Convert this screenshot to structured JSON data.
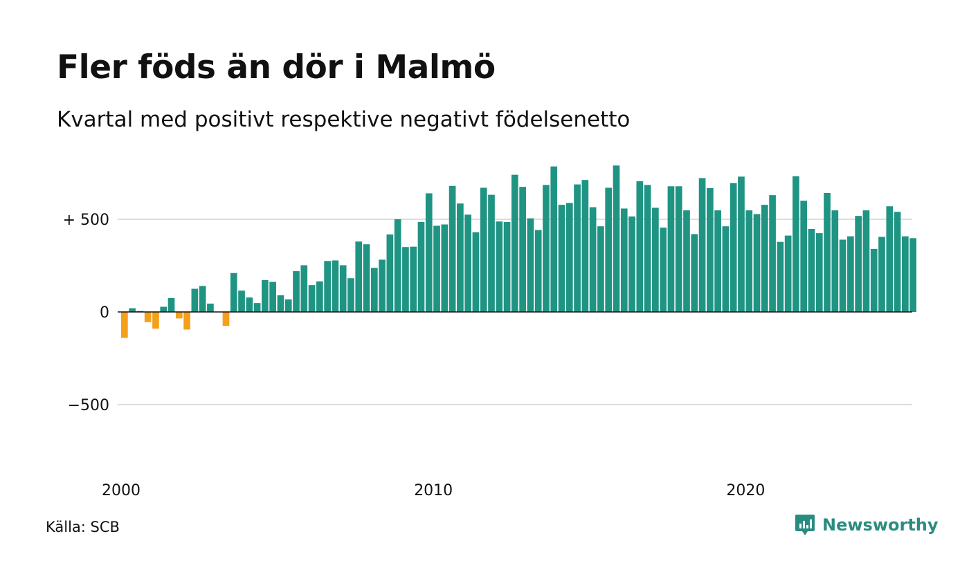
{
  "title": "Fler föds än dör i Malmö",
  "subtitle": "Kvartal med positivt respektive negativt födelsenetto",
  "source": "Källa: SCB",
  "brand": {
    "name": "Newsworthy",
    "icon": "newsworthy-logo-icon"
  },
  "colors": {
    "positive": "#1f9483",
    "negative": "#f5a01a",
    "grid": "#dddddd",
    "axis": "#111111"
  },
  "chart_data": {
    "type": "bar",
    "title": "Fler föds än dör i Malmö",
    "subtitle": "Kvartal med positivt respektive negativt födelsenetto",
    "xlabel": "",
    "ylabel": "",
    "x_start_year": 2000,
    "periods_per_year": 4,
    "ylim": [
      -1000,
      800
    ],
    "yticks": [
      {
        "value": 500,
        "label": "+ 500"
      },
      {
        "value": 0,
        "label": "0"
      },
      {
        "value": -500,
        "label": "−500"
      }
    ],
    "xticks": [
      {
        "value": 2000,
        "label": "2000"
      },
      {
        "value": 2010,
        "label": "2010"
      },
      {
        "value": 2020,
        "label": "2020"
      }
    ],
    "grid": true,
    "legend": "none",
    "values": [
      -140,
      20,
      5,
      -55,
      -90,
      28,
      75,
      -35,
      -95,
      125,
      140,
      45,
      0,
      -75,
      210,
      115,
      78,
      48,
      172,
      162,
      90,
      68,
      220,
      252,
      145,
      165,
      275,
      278,
      252,
      182,
      380,
      365,
      238,
      282,
      418,
      500,
      350,
      352,
      485,
      640,
      465,
      472,
      680,
      585,
      525,
      430,
      670,
      632,
      488,
      485,
      740,
      675,
      505,
      442,
      685,
      785,
      578,
      588,
      688,
      712,
      565,
      462,
      670,
      790,
      558,
      515,
      705,
      685,
      562,
      455,
      678,
      678,
      548,
      420,
      722,
      668,
      548,
      462,
      695,
      730,
      548,
      528,
      578,
      630,
      378,
      412,
      732,
      600,
      448,
      425,
      642,
      548,
      390,
      408,
      518,
      548,
      340,
      405,
      570,
      540,
      408,
      398
    ]
  }
}
